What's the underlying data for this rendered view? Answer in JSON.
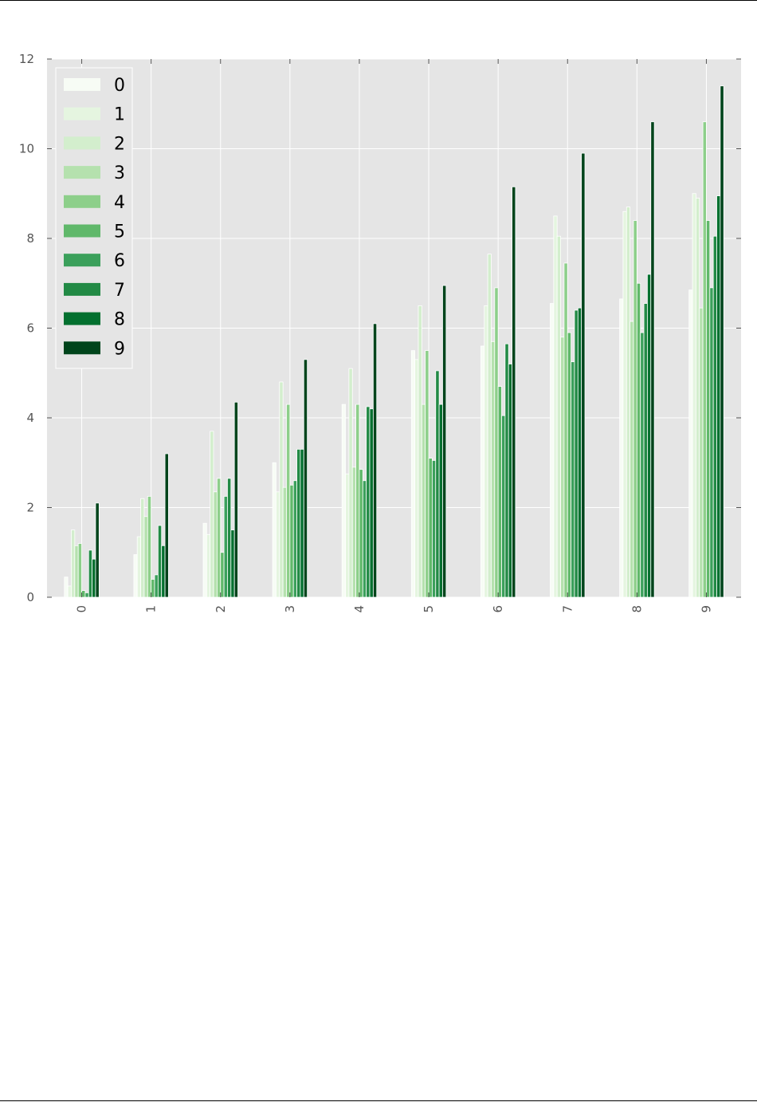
{
  "page": {
    "background": "#ffffff",
    "rule_color": "#000000"
  },
  "chart_data": {
    "type": "bar",
    "style": "ggplot",
    "plot_background": "#e5e5e5",
    "grid": true,
    "grid_color": "#ffffff",
    "title": "",
    "xlabel": "",
    "ylabel": "",
    "ylim": [
      0,
      12
    ],
    "yticks": [
      "0",
      "2",
      "4",
      "6",
      "8",
      "10",
      "12"
    ],
    "categories": [
      "0",
      "1",
      "2",
      "3",
      "4",
      "5",
      "6",
      "7",
      "8",
      "9"
    ],
    "x_tick_rotation": 90,
    "legend": {
      "position": "upper-left",
      "frame_color": "#ffffff"
    },
    "series": [
      {
        "name": "0",
        "color": "#f7fcf5",
        "values": [
          0.45,
          0.95,
          1.65,
          3.0,
          4.3,
          5.5,
          5.6,
          6.55,
          6.65,
          6.85
        ]
      },
      {
        "name": "1",
        "color": "#e5f5e0",
        "values": [
          0.25,
          1.35,
          1.4,
          2.35,
          2.75,
          5.3,
          6.5,
          8.5,
          8.6,
          9.0
        ]
      },
      {
        "name": "2",
        "color": "#d3eecd",
        "values": [
          1.5,
          2.2,
          3.7,
          4.8,
          5.1,
          6.5,
          7.65,
          8.05,
          8.7,
          8.9
        ]
      },
      {
        "name": "3",
        "color": "#b5e1ae",
        "values": [
          1.15,
          1.8,
          2.35,
          2.45,
          2.9,
          4.3,
          5.7,
          5.8,
          6.15,
          6.45
        ]
      },
      {
        "name": "4",
        "color": "#8dcf8a",
        "values": [
          1.2,
          2.25,
          2.65,
          4.3,
          4.3,
          5.5,
          6.9,
          7.45,
          8.4,
          10.6
        ]
      },
      {
        "name": "5",
        "color": "#60b86a",
        "values": [
          0.15,
          0.4,
          1.0,
          2.5,
          2.85,
          3.1,
          4.7,
          5.9,
          7.0,
          8.4
        ]
      },
      {
        "name": "6",
        "color": "#3ba05b",
        "values": [
          0.1,
          0.5,
          2.25,
          2.6,
          2.6,
          3.05,
          4.05,
          5.25,
          5.9,
          6.9
        ]
      },
      {
        "name": "7",
        "color": "#228a45",
        "values": [
          1.05,
          1.6,
          2.65,
          3.3,
          4.25,
          5.05,
          5.65,
          6.4,
          6.55,
          8.05
        ]
      },
      {
        "name": "8",
        "color": "#03702f",
        "values": [
          0.85,
          1.15,
          1.5,
          3.3,
          4.2,
          4.3,
          5.2,
          6.45,
          7.2,
          8.95
        ]
      },
      {
        "name": "9",
        "color": "#00441b",
        "values": [
          2.1,
          3.2,
          4.35,
          5.3,
          6.1,
          6.95,
          9.15,
          9.9,
          10.6,
          11.4
        ]
      }
    ]
  }
}
